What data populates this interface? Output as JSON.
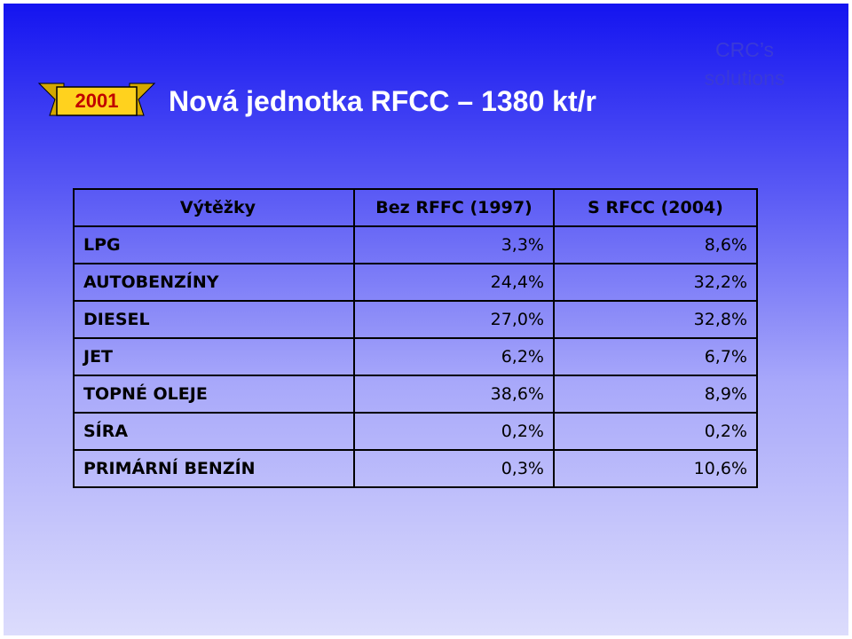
{
  "header": {
    "badge": "2001",
    "title": "Nová jednotka RFCC – 1380 kt/r",
    "logo": [
      "CRC’s",
      "solutions"
    ]
  },
  "table": {
    "columns": [
      "Výtěžky",
      "Bez RFFC (1997)",
      "S RFCC (2004)"
    ],
    "rows": [
      [
        "LPG",
        "3,3%",
        "8,6%"
      ],
      [
        "AUTOBENZÍNY",
        "24,4%",
        "32,2%"
      ],
      [
        "DIESEL",
        "27,0%",
        "32,8%"
      ],
      [
        "JET",
        "6,2%",
        "6,7%"
      ],
      [
        "TOPNÉ OLEJE",
        "38,6%",
        "8,9%"
      ],
      [
        "SÍRA",
        "0,2%",
        "0,2%"
      ],
      [
        "PRIMÁRNÍ BENZÍN",
        "0,3%",
        "10,6%"
      ]
    ]
  }
}
